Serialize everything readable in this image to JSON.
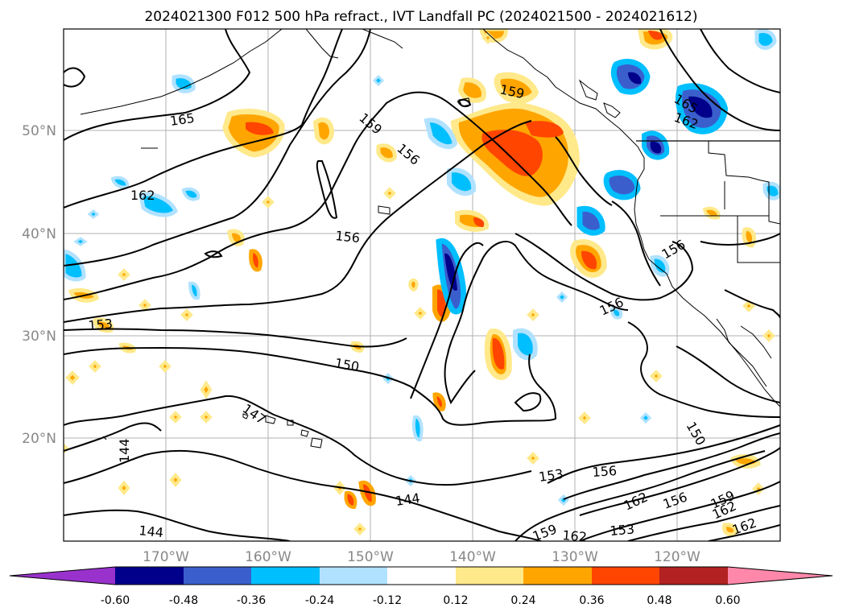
{
  "title": "2024021300 F012 500 hPa refract., IVT Landfall PC (2024021500 - 2024021612)",
  "map": {
    "lon_ticks": [
      "170°W",
      "160°W",
      "150°W",
      "140°W",
      "130°W",
      "120°W"
    ],
    "lat_ticks": [
      "50°N",
      "40°N",
      "30°N",
      "20°N"
    ],
    "contour_labels": [
      "165",
      "162",
      "159",
      "156",
      "156",
      "156",
      "156",
      "153",
      "150",
      "147",
      "144",
      "144",
      "144",
      "150",
      "153",
      "156",
      "162",
      "156",
      "159",
      "162",
      "162",
      "165",
      "162",
      "159",
      "162",
      "153",
      "159"
    ],
    "colors": {
      "land_outline": "#000000",
      "contour": "#000000",
      "grid": "#b0b0b0"
    }
  },
  "colorbar": {
    "levels": [
      "-0.60",
      "-0.48",
      "-0.36",
      "-0.24",
      "-0.12",
      "0.12",
      "0.24",
      "0.36",
      "0.48",
      "0.60"
    ],
    "colors": [
      "#9932cc",
      "#00008b",
      "#3a5fcd",
      "#00bfff",
      "#b0e2ff",
      "#ffffff",
      "#ffe98a",
      "#ffa500",
      "#ff4500",
      "#b22222",
      "#ff88aa"
    ]
  }
}
